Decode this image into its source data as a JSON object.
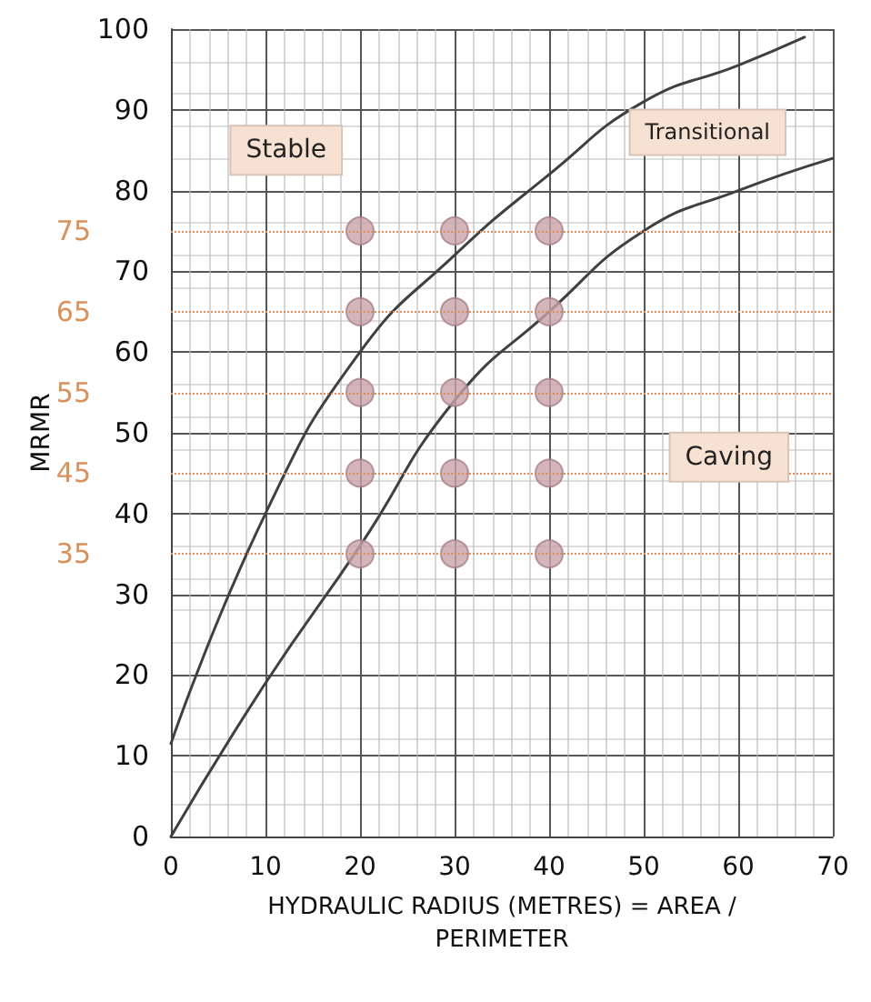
{
  "chart_data": {
    "type": "line",
    "xlabel": "HYDRAULIC RADIUS (METRES) = AREA /\nPERIMETER",
    "ylabel": "MRMR",
    "xlim": [
      0,
      70
    ],
    "xticks": [
      0,
      10,
      20,
      30,
      40,
      50,
      60,
      70
    ],
    "ylim": [
      0,
      100
    ],
    "yticks": [
      0,
      10,
      20,
      30,
      40,
      50,
      60,
      70,
      80,
      90,
      100
    ],
    "grid": true,
    "line_style": "solid",
    "series": [
      {
        "color": "#404040",
        "marker": "none",
        "x": [
          0,
          10,
          20,
          30,
          40,
          50,
          60,
          67
        ],
        "values": [
          11.5,
          40,
          60,
          72,
          82,
          91,
          95.5,
          99
        ]
      },
      {
        "color": "#404040",
        "marker": "none",
        "x": [
          0,
          10,
          20,
          30,
          40,
          50,
          60,
          70
        ],
        "values": [
          0,
          19,
          36,
          54,
          65,
          75,
          80,
          84
        ]
      },
      {
        "type": "scatter",
        "color": "#c9a2a8",
        "marker": "circle",
        "x": [
          20,
          30,
          40,
          20,
          30,
          40,
          20,
          30,
          40,
          20,
          30,
          40,
          20,
          30,
          40
        ],
        "values": [
          75,
          75,
          75,
          65,
          65,
          65,
          55,
          55,
          55,
          45,
          45,
          45,
          35,
          35,
          35
        ]
      }
    ],
    "ref_lines": [
      {
        "axis": "y",
        "value": 75,
        "label": "75",
        "color": "#d9905a",
        "line_style": "dotted"
      },
      {
        "axis": "y",
        "value": 65,
        "label": "65",
        "color": "#d9905a",
        "line_style": "dotted"
      },
      {
        "axis": "y",
        "value": 55,
        "label": "55",
        "color": "#d9905a",
        "line_style": "dotted"
      },
      {
        "axis": "y",
        "value": 45,
        "label": "45",
        "color": "#d9905a",
        "line_style": "dotted"
      },
      {
        "axis": "y",
        "value": 35,
        "label": "35",
        "color": "#d9905a",
        "line_style": "dotted"
      }
    ],
    "annotations": [
      "Stable",
      "Transitional",
      "Caving"
    ]
  }
}
